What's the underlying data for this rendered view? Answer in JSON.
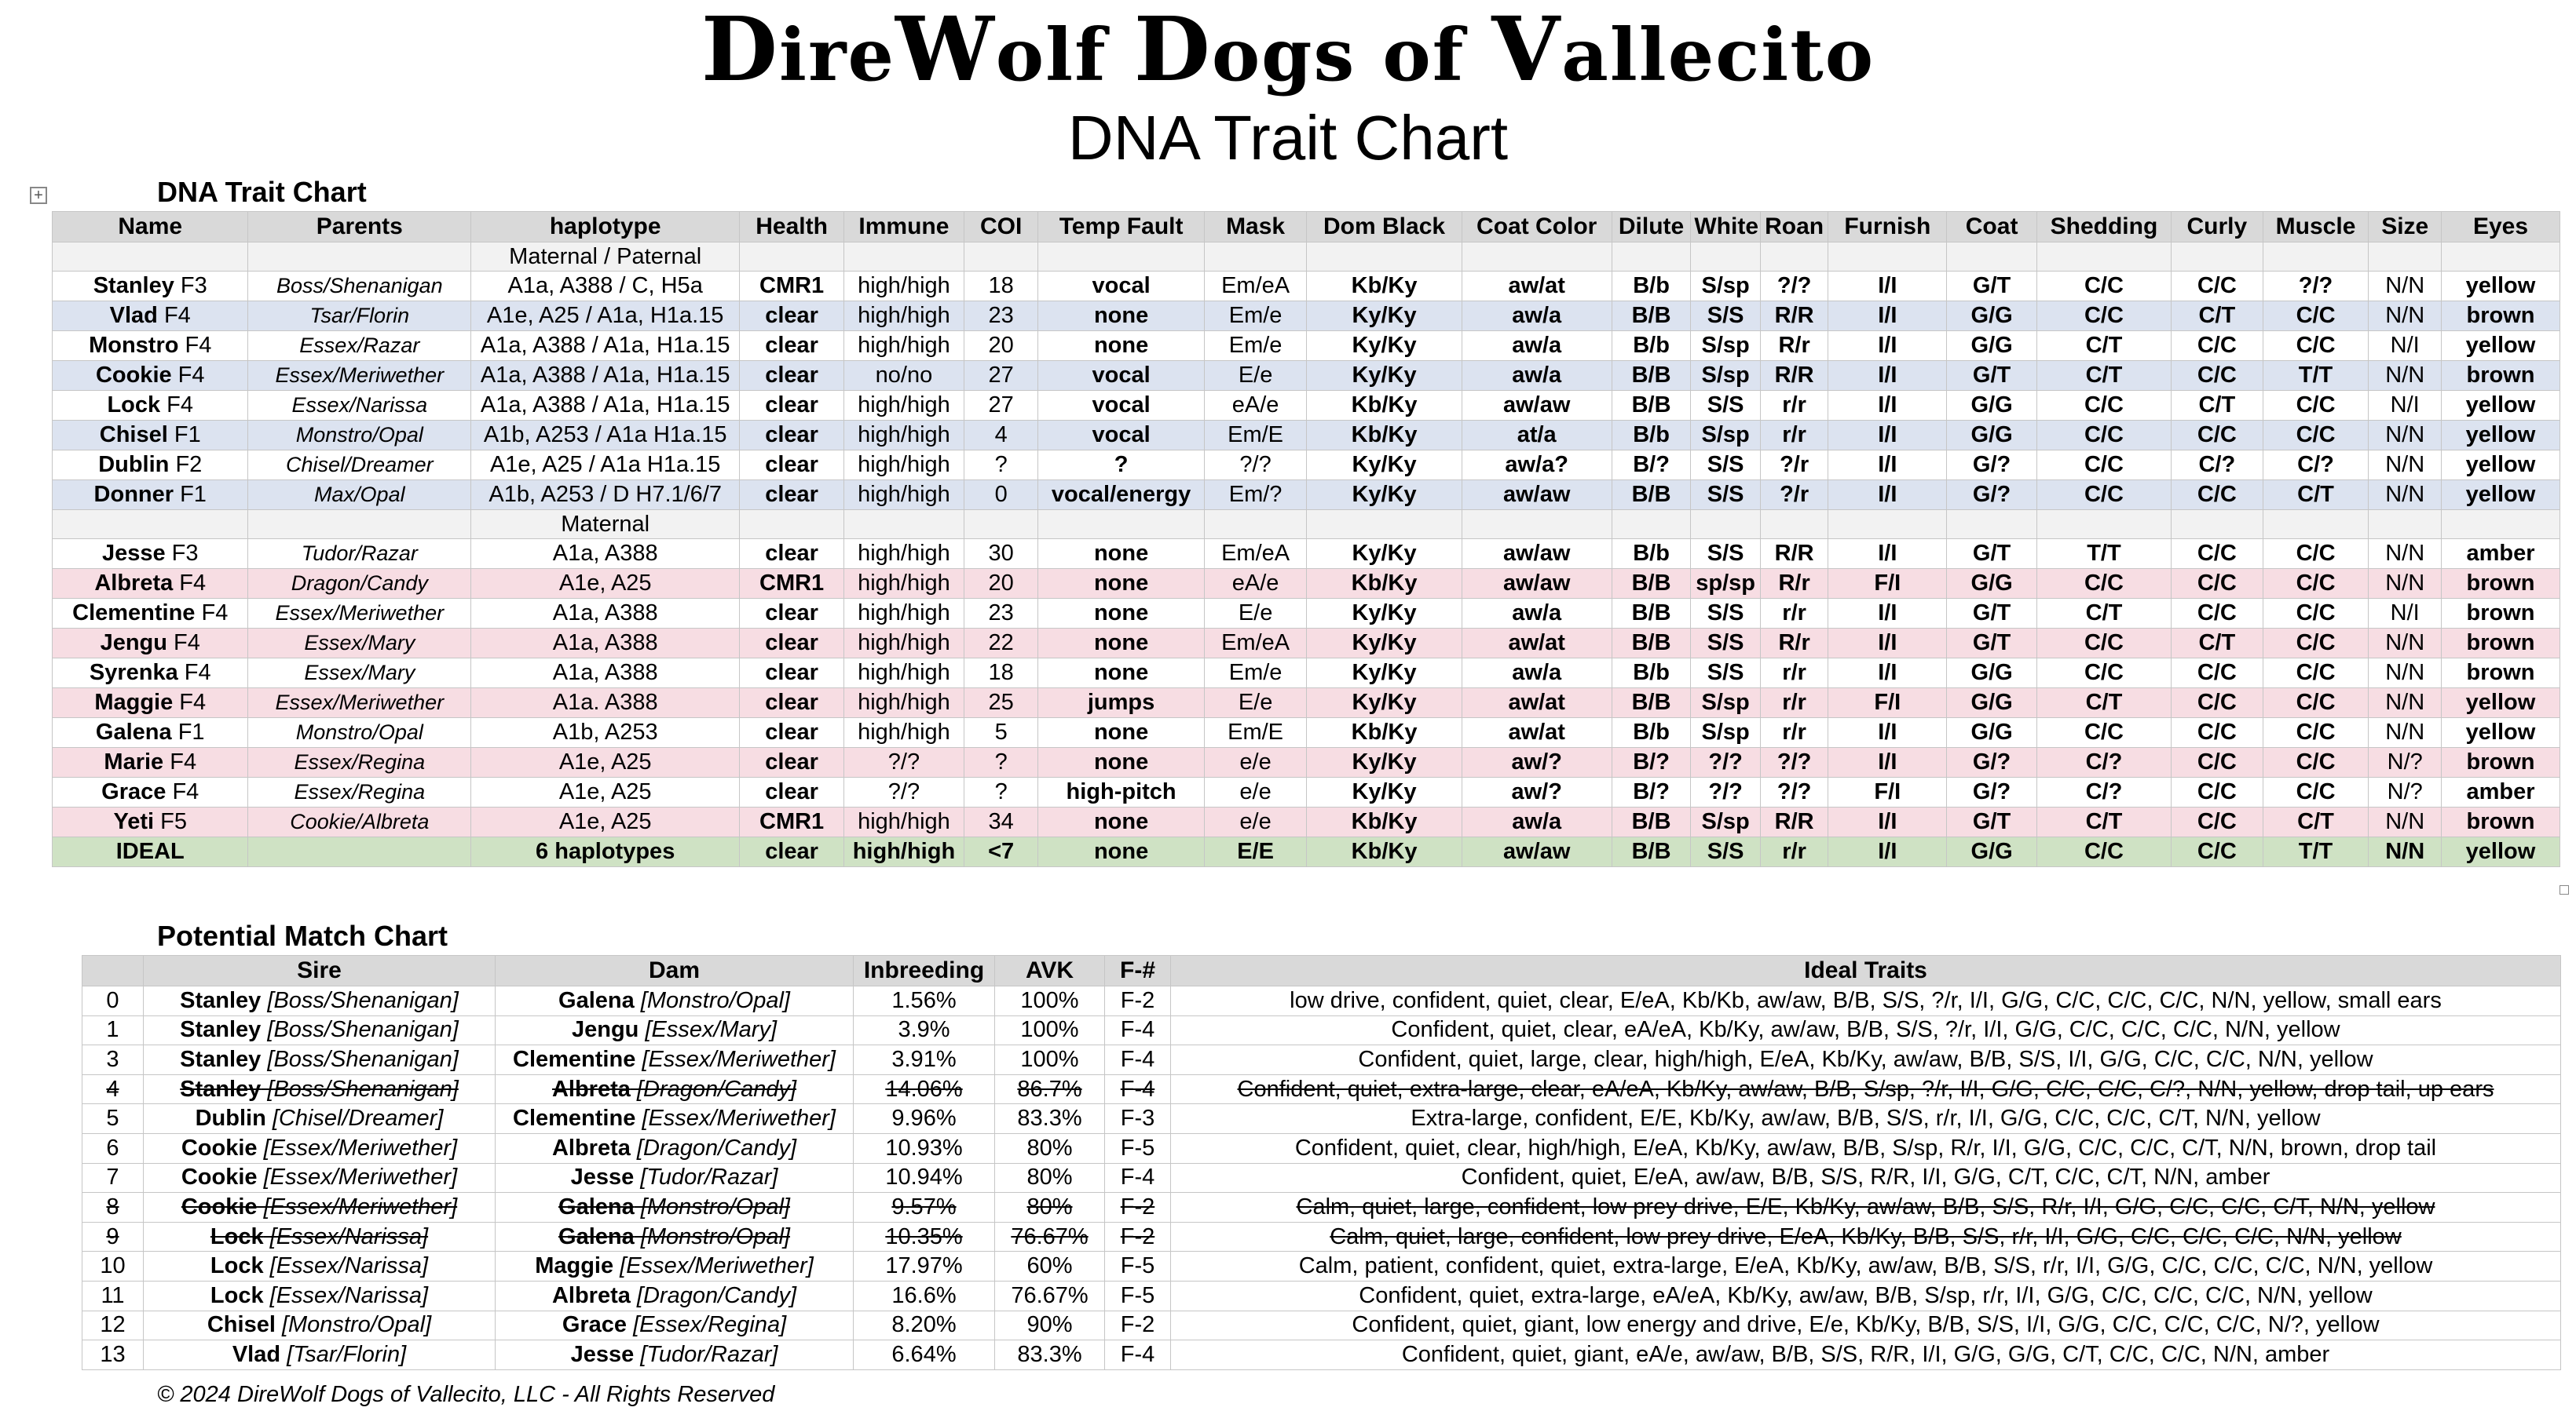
{
  "brand": {
    "p1": "D",
    "p2": "ire",
    "p3": "W",
    "p4": "olf ",
    "p5": "D",
    "p6": "ogs of ",
    "p7": "V",
    "p8": "allecito"
  },
  "subtitle": "DNA Trait Chart",
  "trait_section_title": "DNA Trait Chart",
  "match_section_title": "Potential Match Chart",
  "copyright": "© 2024 DireWolf Dogs of Vallecito, LLC - All Rights Reserved",
  "trait_table": {
    "headers": [
      "Name",
      "Parents",
      "haplotype",
      "Health",
      "Immune",
      "COI",
      "Temp Fault",
      "Mask",
      "Dom Black",
      "Coat Color",
      "Dilute",
      "White",
      "Roan",
      "Furnish",
      "Coat",
      "Shedding",
      "Curly",
      "Muscle",
      "Size",
      "Eyes"
    ],
    "rows": [
      {
        "type": "sub",
        "cells": [
          "",
          "",
          "Maternal / Paternal",
          "",
          "",
          "",
          "",
          "",
          "",
          "",
          "",
          "",
          "",
          "",
          "",
          "",
          "",
          "",
          "",
          ""
        ]
      },
      {
        "type": "plain",
        "name": "Stanley",
        "gen": " F3",
        "cells": [
          "Boss/Shenanigan",
          "A1a, A388 / C, H5a",
          "CMR1",
          "high/high",
          "18",
          "vocal",
          "Em/eA",
          "Kb/Ky",
          "aw/at",
          "B/b",
          "S/sp",
          "?/?",
          "I/I",
          "G/T",
          "C/C",
          "C/C",
          "?/?",
          "N/N",
          "yellow"
        ]
      },
      {
        "type": "blue",
        "name": "Vlad",
        "gen": " F4",
        "cells": [
          "Tsar/Florin",
          "A1e, A25 / A1a, H1a.15",
          "clear",
          "high/high",
          "23",
          "none",
          "Em/e",
          "Ky/Ky",
          "aw/a",
          "B/B",
          "S/S",
          "R/R",
          "I/I",
          "G/G",
          "C/C",
          "C/T",
          "C/C",
          "N/N",
          "brown"
        ]
      },
      {
        "type": "plain",
        "name": "Monstro",
        "gen": " F4",
        "cells": [
          "Essex/Razar",
          "A1a, A388 / A1a, H1a.15",
          "clear",
          "high/high",
          "20",
          "none",
          "Em/e",
          "Ky/Ky",
          "aw/a",
          "B/b",
          "S/sp",
          "R/r",
          "I/I",
          "G/G",
          "C/T",
          "C/C",
          "C/C",
          "N/I",
          "yellow"
        ]
      },
      {
        "type": "blue",
        "name": "Cookie",
        "gen": " F4",
        "cells": [
          "Essex/Meriwether",
          "A1a, A388 / A1a, H1a.15",
          "clear",
          "no/no",
          "27",
          "vocal",
          "E/e",
          "Ky/Ky",
          "aw/a",
          "B/B",
          "S/sp",
          "R/R",
          "I/I",
          "G/T",
          "C/T",
          "C/C",
          "T/T",
          "N/N",
          "brown"
        ]
      },
      {
        "type": "plain",
        "name": "Lock",
        "gen": " F4",
        "cells": [
          "Essex/Narissa",
          "A1a, A388 / A1a, H1a.15",
          "clear",
          "high/high",
          "27",
          "vocal",
          "eA/e",
          "Kb/Ky",
          "aw/aw",
          "B/B",
          "S/S",
          "r/r",
          "I/I",
          "G/G",
          "C/C",
          "C/T",
          "C/C",
          "N/I",
          "yellow"
        ]
      },
      {
        "type": "blue",
        "name": "Chisel",
        "gen": " F1",
        "cells": [
          "Monstro/Opal",
          "A1b, A253 / A1a H1a.15",
          "clear",
          "high/high",
          "4",
          "vocal",
          "Em/E",
          "Kb/Ky",
          "at/a",
          "B/b",
          "S/sp",
          "r/r",
          "I/I",
          "G/G",
          "C/C",
          "C/C",
          "C/C",
          "N/N",
          "yellow"
        ]
      },
      {
        "type": "plain",
        "name": "Dublin",
        "gen": " F2",
        "cells": [
          "Chisel/Dreamer",
          "A1e, A25 / A1a H1a.15",
          "clear",
          "high/high",
          "?",
          "?",
          "?/?",
          "Ky/Ky",
          "aw/a?",
          "B/?",
          "S/S",
          "?/r",
          "I/I",
          "G/?",
          "C/C",
          "C/?",
          "C/?",
          "N/N",
          "yellow"
        ]
      },
      {
        "type": "blue",
        "name": "Donner",
        "gen": " F1",
        "cells": [
          "Max/Opal",
          "A1b, A253 / D H7.1/6/7",
          "clear",
          "high/high",
          "0",
          "vocal/energy",
          "Em/?",
          "Ky/Ky",
          "aw/aw",
          "B/B",
          "S/S",
          "?/r",
          "I/I",
          "G/?",
          "C/C",
          "C/C",
          "C/T",
          "N/N",
          "yellow"
        ]
      },
      {
        "type": "sub",
        "cells": [
          "",
          "",
          "Maternal",
          "",
          "",
          "",
          "",
          "",
          "",
          "",
          "",
          "",
          "",
          "",
          "",
          "",
          "",
          "",
          "",
          ""
        ]
      },
      {
        "type": "plain",
        "name": "Jesse",
        "gen": " F3",
        "cells": [
          "Tudor/Razar",
          "A1a, A388",
          "clear",
          "high/high",
          "30",
          "none",
          "Em/eA",
          "Ky/Ky",
          "aw/aw",
          "B/b",
          "S/S",
          "R/R",
          "I/I",
          "G/T",
          "T/T",
          "C/C",
          "C/C",
          "N/N",
          "amber"
        ]
      },
      {
        "type": "pink",
        "name": "Albreta",
        "gen": " F4",
        "cells": [
          "Dragon/Candy",
          "A1e, A25",
          "CMR1",
          "high/high",
          "20",
          "none",
          "eA/e",
          "Kb/Ky",
          "aw/aw",
          "B/B",
          "sp/sp",
          "R/r",
          "F/I",
          "G/G",
          "C/C",
          "C/C",
          "C/C",
          "N/N",
          "brown"
        ]
      },
      {
        "type": "plain",
        "name": "Clementine",
        "gen": " F4",
        "cells": [
          "Essex/Meriwether",
          "A1a, A388",
          "clear",
          "high/high",
          "23",
          "none",
          "E/e",
          "Ky/Ky",
          "aw/a",
          "B/B",
          "S/S",
          "r/r",
          "I/I",
          "G/T",
          "C/T",
          "C/C",
          "C/C",
          "N/I",
          "brown"
        ]
      },
      {
        "type": "pink",
        "name": "Jengu",
        "gen": " F4",
        "cells": [
          "Essex/Mary",
          "A1a, A388",
          "clear",
          "high/high",
          "22",
          "none",
          "Em/eA",
          "Ky/Ky",
          "aw/at",
          "B/B",
          "S/S",
          "R/r",
          "I/I",
          "G/T",
          "C/C",
          "C/T",
          "C/C",
          "N/N",
          "brown"
        ]
      },
      {
        "type": "plain",
        "name": "Syrenka",
        "gen": " F4",
        "cells": [
          "Essex/Mary",
          "A1a, A388",
          "clear",
          "high/high",
          "18",
          "none",
          "Em/e",
          "Ky/Ky",
          "aw/a",
          "B/b",
          "S/S",
          "r/r",
          "I/I",
          "G/G",
          "C/C",
          "C/C",
          "C/C",
          "N/N",
          "brown"
        ]
      },
      {
        "type": "pink",
        "name": "Maggie",
        "gen": " F4",
        "cells": [
          "Essex/Meriwether",
          "A1a. A388",
          "clear",
          "high/high",
          "25",
          "jumps",
          "E/e",
          "Ky/Ky",
          "aw/at",
          "B/B",
          "S/sp",
          "r/r",
          "F/I",
          "G/G",
          "C/T",
          "C/C",
          "C/C",
          "N/N",
          "yellow"
        ]
      },
      {
        "type": "plain",
        "name": "Galena",
        "gen": " F1",
        "cells": [
          "Monstro/Opal",
          "A1b, A253",
          "clear",
          "high/high",
          "5",
          "none",
          "Em/E",
          "Kb/Ky",
          "aw/at",
          "B/b",
          "S/sp",
          "r/r",
          "I/I",
          "G/G",
          "C/C",
          "C/C",
          "C/C",
          "N/N",
          "yellow"
        ]
      },
      {
        "type": "pink",
        "name": "Marie",
        "gen": " F4",
        "cells": [
          "Essex/Regina",
          "A1e, A25",
          "clear",
          "?/?",
          "?",
          "none",
          "e/e",
          "Ky/Ky",
          "aw/?",
          "B/?",
          "?/?",
          "?/?",
          "I/I",
          "G/?",
          "C/?",
          "C/C",
          "C/C",
          "N/?",
          "brown"
        ]
      },
      {
        "type": "plain",
        "name": "Grace",
        "gen": " F4",
        "cells": [
          "Essex/Regina",
          "A1e, A25",
          "clear",
          "?/?",
          "?",
          "high-pitch",
          "e/e",
          "Ky/Ky",
          "aw/?",
          "B/?",
          "?/?",
          "?/?",
          "F/I",
          "G/?",
          "C/?",
          "C/C",
          "C/C",
          "N/?",
          "amber"
        ]
      },
      {
        "type": "pink",
        "name": "Yeti",
        "gen": " F5",
        "cells": [
          "Cookie/Albreta",
          "A1e, A25",
          "CMR1",
          "high/high",
          "34",
          "none",
          "e/e",
          "Kb/Ky",
          "aw/a",
          "B/B",
          "S/sp",
          "R/R",
          "I/I",
          "G/T",
          "C/T",
          "C/C",
          "C/T",
          "N/N",
          "brown"
        ]
      },
      {
        "type": "green",
        "name": "IDEAL",
        "gen": "",
        "cells": [
          "",
          "6 haplotypes",
          "clear",
          "high/high",
          "<7",
          "none",
          "E/E",
          "Kb/Ky",
          "aw/aw",
          "B/B",
          "S/S",
          "r/r",
          "I/I",
          "G/G",
          "C/C",
          "C/C",
          "T/T",
          "N/N",
          "yellow"
        ]
      }
    ]
  },
  "match_table": {
    "headers": [
      "",
      "Sire",
      "Dam",
      "Inbreeding",
      "AVK",
      "F-#",
      "Ideal Traits"
    ],
    "rows": [
      {
        "struck": false,
        "num": "0",
        "sire": "Stanley",
        "sire_p": " [Boss/Shenanigan]",
        "dam": "Galena",
        "dam_p": " [Monstro/Opal]",
        "inb": "1.56%",
        "avk": "100%",
        "f": "F-2",
        "traits": "low drive, confident, quiet, clear, E/eA, Kb/Kb, aw/aw, B/B, S/S, ?/r, I/I, G/G, C/C, C/C, C/C, N/N, yellow, small ears"
      },
      {
        "struck": false,
        "num": "1",
        "sire": "Stanley",
        "sire_p": " [Boss/Shenanigan]",
        "dam": "Jengu",
        "dam_p": " [Essex/Mary]",
        "inb": "3.9%",
        "avk": "100%",
        "f": "F-4",
        "traits": "Confident, quiet, clear, eA/eA, Kb/Ky, aw/aw, B/B, S/S, ?/r, I/I, G/G, C/C, C/C, C/C, N/N, yellow"
      },
      {
        "struck": false,
        "num": "3",
        "sire": "Stanley",
        "sire_p": " [Boss/Shenanigan]",
        "dam": "Clementine",
        "dam_p": " [Essex/Meriwether]",
        "inb": "3.91%",
        "avk": "100%",
        "f": "F-4",
        "traits": "Confident, quiet, large, clear, high/high, E/eA, Kb/Ky, aw/aw, B/B, S/S, I/I, G/G, C/C, C/C, N/N, yellow"
      },
      {
        "struck": true,
        "num": "4",
        "sire": "Stanley",
        "sire_p": " [Boss/Shenanigan]",
        "dam": "Albreta",
        "dam_p": " [Dragon/Candy]",
        "inb": "14.06%",
        "avk": "86.7%",
        "f": "F-4",
        "traits": "Confident, quiet, extra-large, clear, eA/eA, Kb/Ky, aw/aw, B/B, S/sp, ?/r, I/I, G/G, C/C, C/C, C/?, N/N, yellow, drop tail, up ears"
      },
      {
        "struck": false,
        "num": "5",
        "sire": "Dublin",
        "sire_p": " [Chisel/Dreamer]",
        "dam": "Clementine",
        "dam_p": " [Essex/Meriwether]",
        "inb": "9.96%",
        "avk": "83.3%",
        "f": "F-3",
        "traits": "Extra-large, confident, E/E, Kb/Ky, aw/aw, B/B, S/S, r/r, I/I, G/G, C/C, C/C, C/T, N/N, yellow"
      },
      {
        "struck": false,
        "num": "6",
        "sire": "Cookie",
        "sire_p": " [Essex/Meriwether]",
        "dam": "Albreta",
        "dam_p": " [Dragon/Candy]",
        "inb": "10.93%",
        "avk": "80%",
        "f": "F-5",
        "traits": "Confident, quiet, clear, high/high, E/eA, Kb/Ky, aw/aw, B/B, S/sp, R/r, I/I, G/G, C/C, C/C, C/T, N/N, brown, drop tail"
      },
      {
        "struck": false,
        "num": "7",
        "sire": "Cookie",
        "sire_p": " [Essex/Meriwether]",
        "dam": "Jesse",
        "dam_p": " [Tudor/Razar]",
        "inb": "10.94%",
        "avk": "80%",
        "f": "F-4",
        "traits": "Confident, quiet, E/eA, aw/aw, B/B, S/S, R/R, I/I, G/G, C/T, C/C, C/T, N/N, amber"
      },
      {
        "struck": true,
        "num": "8",
        "sire": "Cookie",
        "sire_p": " [Essex/Meriwether]",
        "dam": "Galena",
        "dam_p": " [Monstro/Opal]",
        "inb": "9.57%",
        "avk": "80%",
        "f": "F-2",
        "traits": "Calm, quiet, large, confident, low prey drive, E/E, Kb/Ky, aw/aw, B/B, S/S, R/r, I/I, G/G, C/C, C/C, C/T, N/N, yellow"
      },
      {
        "struck": true,
        "num": "9",
        "sire": "Lock",
        "sire_p": " [Essex/Narissa]",
        "dam": "Galena",
        "dam_p": " [Monstro/Opal]",
        "inb": "10.35%",
        "avk": "76.67%",
        "f": "F-2",
        "traits": "Calm, quiet, large, confident, low prey drive, E/eA, Kb/Ky, B/B, S/S, r/r, I/I, G/G, C/C, C/C, C/C, N/N, yellow"
      },
      {
        "struck": false,
        "num": "10",
        "sire": "Lock",
        "sire_p": " [Essex/Narissa]",
        "dam": "Maggie",
        "dam_p": " [Essex/Meriwether]",
        "inb": "17.97%",
        "avk": "60%",
        "f": "F-5",
        "traits": "Calm, patient, confident, quiet, extra-large, E/eA, Kb/Ky, aw/aw, B/B, S/S, r/r, I/I, G/G, C/C, C/C, C/C, N/N, yellow"
      },
      {
        "struck": false,
        "num": "11",
        "sire": "Lock",
        "sire_p": " [Essex/Narissa]",
        "dam": "Albreta",
        "dam_p": " [Dragon/Candy]",
        "inb": "16.6%",
        "avk": "76.67%",
        "f": "F-5",
        "traits": "Confident, quiet, extra-large, eA/eA, Kb/Ky, aw/aw, B/B, S/sp, r/r, I/I, G/G, C/C, C/C, C/C, N/N, yellow"
      },
      {
        "struck": false,
        "num": "12",
        "sire": "Chisel",
        "sire_p": " [Monstro/Opal]",
        "dam": "Grace",
        "dam_p": " [Essex/Regina]",
        "inb": "8.20%",
        "avk": "90%",
        "f": "F-2",
        "traits": "Confident, quiet, giant, low energy and drive, E/e, Kb/Ky, B/B, S/S, I/I, G/G, C/C, C/C, C/C, N/?, yellow"
      },
      {
        "struck": false,
        "num": "13",
        "sire": "Vlad",
        "sire_p": " [Tsar/Florin]",
        "dam": "Jesse",
        "dam_p": " [Tudor/Razar]",
        "inb": "6.64%",
        "avk": "83.3%",
        "f": "F-4",
        "traits": "Confident, quiet, giant, eA/e, aw/aw, B/B, S/S, R/R, I/I, G/G, G/G, C/T, C/C, C/C, N/N, amber"
      }
    ]
  }
}
